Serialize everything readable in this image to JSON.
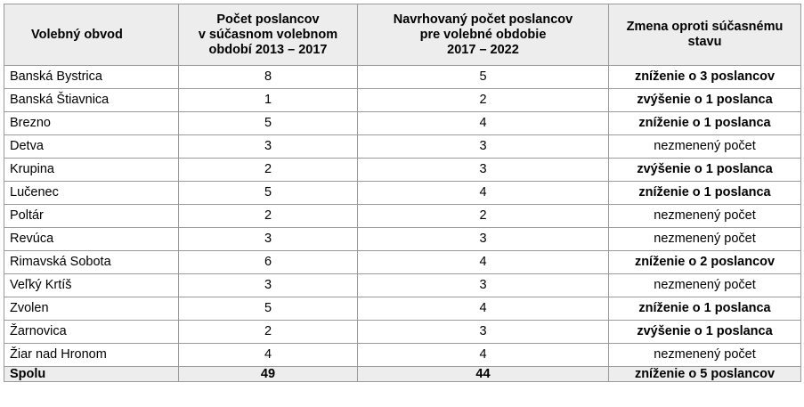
{
  "headers": {
    "district": "Volebný obvod",
    "current_line1": "Počet poslancov",
    "current_line2": "v súčasnom volebnom",
    "current_line3": "období 2013 – 2017",
    "proposed_line1": "Navrhovaný počet poslancov",
    "proposed_line2": "pre volebné obdobie",
    "proposed_line3": "2017 – 2022",
    "change_line1": "Zmena oproti súčasnému",
    "change_line2": "stavu"
  },
  "rows": [
    {
      "district": "Banská Bystrica",
      "current": "8",
      "proposed": "5",
      "change": "zníženie o 3 poslancov",
      "emphasis": true
    },
    {
      "district": "Banská Štiavnica",
      "current": "1",
      "proposed": "2",
      "change": "zvýšenie o 1 poslanca",
      "emphasis": true
    },
    {
      "district": "Brezno",
      "current": "5",
      "proposed": "4",
      "change": "zníženie o 1 poslanca",
      "emphasis": true
    },
    {
      "district": "Detva",
      "current": "3",
      "proposed": "3",
      "change": "nezmenený počet",
      "emphasis": false
    },
    {
      "district": "Krupina",
      "current": "2",
      "proposed": "3",
      "change": "zvýšenie o 1 poslanca",
      "emphasis": true
    },
    {
      "district": "Lučenec",
      "current": "5",
      "proposed": "4",
      "change": "zníženie o 1 poslanca",
      "emphasis": true
    },
    {
      "district": "Poltár",
      "current": "2",
      "proposed": "2",
      "change": "nezmenený počet",
      "emphasis": false
    },
    {
      "district": "Revúca",
      "current": "3",
      "proposed": "3",
      "change": "nezmenený počet",
      "emphasis": false
    },
    {
      "district": "Rimavská Sobota",
      "current": "6",
      "proposed": "4",
      "change": "zníženie o 2 poslancov",
      "emphasis": true
    },
    {
      "district": "Veľký Krtíš",
      "current": "3",
      "proposed": "3",
      "change": "nezmenený počet",
      "emphasis": false
    },
    {
      "district": "Zvolen",
      "current": "5",
      "proposed": "4",
      "change": "zníženie o 1 poslanca",
      "emphasis": true
    },
    {
      "district": "Žarnovica",
      "current": "2",
      "proposed": "3",
      "change": "zvýšenie o 1 poslanca",
      "emphasis": true
    },
    {
      "district": "Žiar nad Hronom",
      "current": "4",
      "proposed": "4",
      "change": "nezmenený počet",
      "emphasis": false
    }
  ],
  "total": {
    "district": "Spolu",
    "current": "49",
    "proposed": "44",
    "change": "zníženie o 5 poslancov"
  }
}
